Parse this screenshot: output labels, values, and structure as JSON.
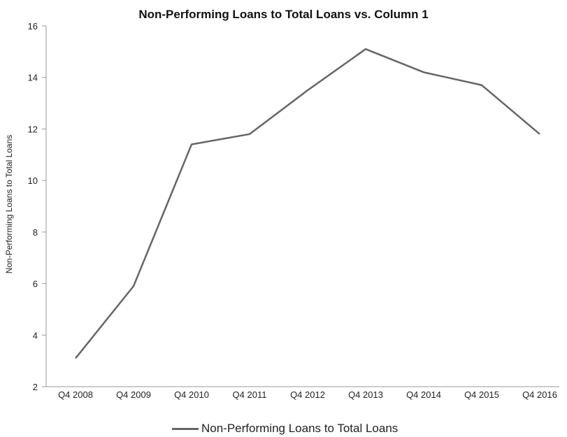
{
  "chart_data": {
    "type": "line",
    "title": "Non-Performing Loans to Total Loans vs. Column 1",
    "xlabel": "",
    "ylabel": "Non-Performing Loans to Total Loans",
    "categories": [
      "Q4 2008",
      "Q4 2009",
      "Q4 2010",
      "Q4 2011",
      "Q4 2012",
      "Q4 2013",
      "Q4 2014",
      "Q4 2015",
      "Q4 2016"
    ],
    "series": [
      {
        "name": "Non-Performing Loans to Total Loans",
        "values": [
          3.1,
          5.9,
          11.4,
          11.8,
          13.5,
          15.1,
          14.2,
          13.7,
          11.8
        ],
        "color": "#666666"
      }
    ],
    "ylim": [
      2,
      16
    ],
    "yticks": [
      2,
      4,
      6,
      8,
      10,
      12,
      14,
      16
    ],
    "grid": false,
    "legend_position": "bottom"
  }
}
